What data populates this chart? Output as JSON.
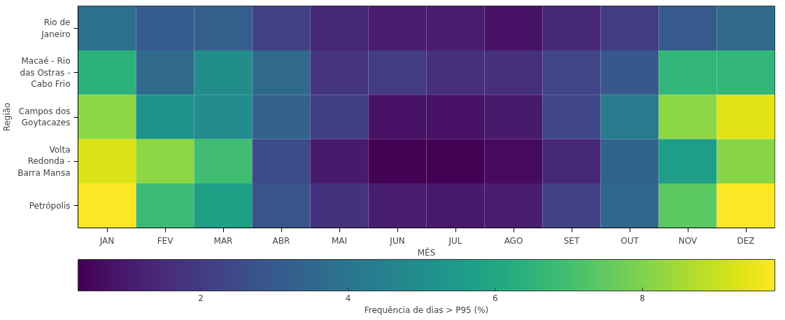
{
  "chart_data": {
    "type": "heatmap",
    "xlabel": "MÊS",
    "ylabel": "Região",
    "clabel": "Frequência de dias > P95 (%)",
    "categories": [
      "JAN",
      "FEV",
      "MAR",
      "ABR",
      "MAI",
      "JUN",
      "JUL",
      "AGO",
      "SET",
      "OUT",
      "NOV",
      "DEZ"
    ],
    "y_categories": [
      "Rio de Janeiro",
      "Macaé - Rio das Ostras - Cabo Frio",
      "Campos dos Goytacazes",
      "Volta Redonda - Barra Mansa",
      "Petrópolis"
    ],
    "cells": [
      [
        3.8,
        3.1,
        3.2,
        2.2,
        1.4,
        1.1,
        1.1,
        0.8,
        1.4,
        2.0,
        3.0,
        3.6
      ],
      [
        6.4,
        3.6,
        5.0,
        3.6,
        1.8,
        2.0,
        1.6,
        1.6,
        2.3,
        2.9,
        6.6,
        6.6
      ],
      [
        8.2,
        5.2,
        4.9,
        3.3,
        2.1,
        0.8,
        0.8,
        1.0,
        2.3,
        4.2,
        8.2,
        9.4
      ],
      [
        9.3,
        8.2,
        6.9,
        2.5,
        1.0,
        0.4,
        0.35,
        0.6,
        1.4,
        3.4,
        5.6,
        8.1
      ],
      [
        9.8,
        6.8,
        5.7,
        2.8,
        1.7,
        1.1,
        1.0,
        1.1,
        2.2,
        3.5,
        7.4,
        9.8
      ]
    ],
    "clim": [
      0.33,
      9.8
    ],
    "cticks": [
      2,
      4,
      6,
      8
    ]
  }
}
